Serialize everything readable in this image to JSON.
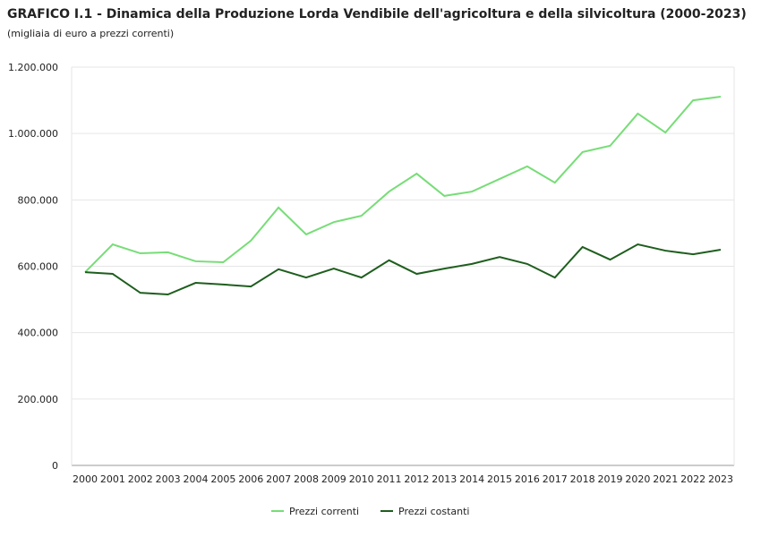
{
  "chart_data": {
    "type": "line",
    "title": "GRAFICO I.1 - Dinamica della Produzione Lorda Vendibile dell'agricoltura e della silvicoltura (2000-2023)",
    "subtitle": "(migliaia di euro a prezzi correnti)",
    "xlabel": "",
    "ylabel": "",
    "ylim": [
      0,
      1200000
    ],
    "yticks": [
      0,
      200000,
      400000,
      600000,
      800000,
      1000000,
      1200000
    ],
    "ytick_labels": [
      "0",
      "200.000",
      "400.000",
      "600.000",
      "800.000",
      "1.000.000",
      "1.200.000"
    ],
    "x": [
      "2000",
      "2001",
      "2002",
      "2003",
      "2004",
      "2005",
      "2006",
      "2007",
      "2008",
      "2009",
      "2010",
      "2011",
      "2012",
      "2013",
      "2014",
      "2015",
      "2016",
      "2017",
      "2018",
      "2019",
      "2020",
      "2021",
      "2022",
      "2023"
    ],
    "grid": true,
    "legend_position": "bottom",
    "series": [
      {
        "name": "Prezzi correnti",
        "color": "#77dd77",
        "values": [
          582000,
          666000,
          639000,
          642000,
          615000,
          612000,
          677000,
          777000,
          696000,
          733000,
          752000,
          825000,
          879000,
          812000,
          825000,
          863000,
          901000,
          852000,
          944000,
          963000,
          1060000,
          1003000,
          1100000,
          1111000
        ]
      },
      {
        "name": "Prezzi costanti",
        "color": "#1e5e1e",
        "values": [
          582000,
          577000,
          520000,
          515000,
          550000,
          545000,
          539000,
          591000,
          566000,
          593000,
          566000,
          618000,
          577000,
          593000,
          607000,
          628000,
          607000,
          566000,
          658000,
          620000,
          666000,
          647000,
          636000,
          650000
        ]
      }
    ]
  }
}
